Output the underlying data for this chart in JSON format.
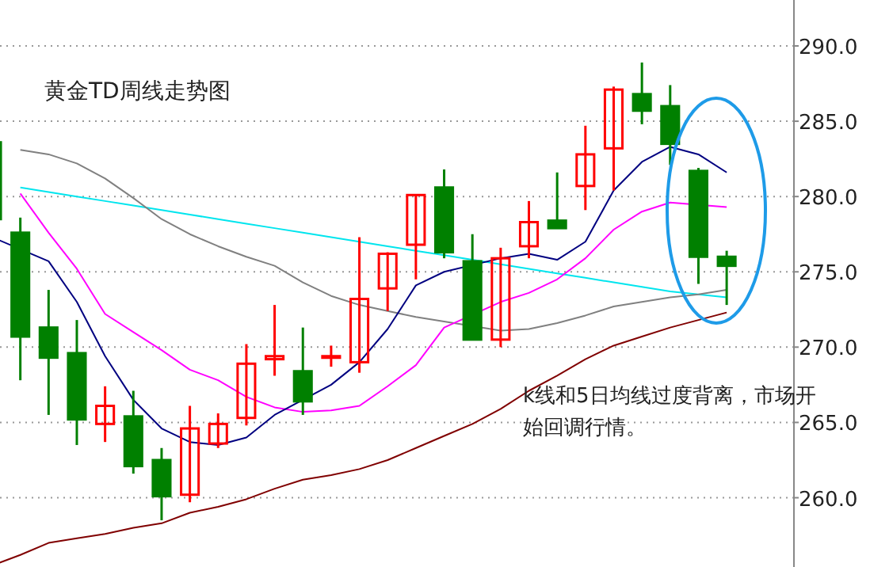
{
  "chart_data": {
    "type": "candlestick",
    "title": "黄金TD周线走势图",
    "annotations": [
      "k线和5日均线过度背离，市场开始回调行情。"
    ],
    "categories": [
      null,
      null,
      null,
      null,
      null,
      null,
      null,
      null,
      null,
      null,
      null,
      null,
      null,
      null,
      null,
      null,
      null,
      null,
      null,
      null,
      null,
      null,
      null,
      null,
      null,
      null,
      null
    ],
    "ohlc": [
      [
        283.6,
        283.6,
        278.5,
        278.5
      ],
      [
        277.6,
        278.6,
        267.8,
        270.7
      ],
      [
        271.3,
        273.8,
        265.5,
        269.3
      ],
      [
        269.6,
        271.8,
        263.5,
        265.2
      ],
      [
        264.9,
        267.4,
        263.7,
        266.1
      ],
      [
        265.4,
        267.1,
        261.6,
        262.1
      ],
      [
        262.5,
        263.3,
        258.5,
        260.1
      ],
      [
        260.2,
        266.1,
        259.7,
        264.6
      ],
      [
        263.6,
        265.6,
        263.3,
        264.9
      ],
      [
        265.3,
        270.2,
        264.8,
        268.9
      ],
      [
        269.2,
        272.8,
        268.1,
        269.4
      ],
      [
        268.4,
        271.3,
        265.5,
        266.4
      ],
      [
        269.4,
        270.1,
        268.7,
        269.4
      ],
      [
        269.0,
        277.3,
        268.3,
        273.2
      ],
      [
        273.9,
        276.3,
        272.4,
        276.2
      ],
      [
        276.8,
        280.1,
        274.5,
        280.1
      ],
      [
        280.6,
        281.8,
        275.9,
        276.3
      ],
      [
        275.7,
        277.5,
        270.5,
        270.5
      ],
      [
        270.5,
        276.6,
        270.0,
        275.9
      ],
      [
        276.7,
        279.7,
        275.9,
        278.3
      ],
      [
        278.4,
        281.6,
        277.9,
        277.9
      ],
      [
        280.7,
        284.7,
        279.1,
        282.8
      ],
      [
        283.2,
        287.3,
        280.4,
        287.1
      ],
      [
        286.8,
        288.9,
        284.8,
        285.7
      ],
      [
        286.0,
        287.4,
        282.1,
        283.5
      ],
      [
        281.7,
        281.9,
        274.2,
        276.0
      ],
      [
        276.0,
        276.4,
        272.8,
        275.4
      ]
    ],
    "colors": [
      "#008000",
      "#008000",
      "#008000",
      "#008000",
      "#ff0000",
      "#008000",
      "#008000",
      "#ff0000",
      "#ff0000",
      "#ff0000",
      "#ff0000",
      "#008000",
      "#ff0000",
      "#ff0000",
      "#ff0000",
      "#ff0000",
      "#008000",
      "#008000",
      "#ff0000",
      "#ff0000",
      "#008000",
      "#ff0000",
      "#ff0000",
      "#008000",
      "#008000",
      "#008000",
      "#008000"
    ],
    "series": [
      {
        "type": "line",
        "color": "#800000",
        "values": [
          255.5,
          256.2,
          257.0,
          257.3,
          257.6,
          258.0,
          258.3,
          259.0,
          259.4,
          259.9,
          260.6,
          261.2,
          261.5,
          261.9,
          262.5,
          263.3,
          264.1,
          264.9,
          265.9,
          267.1,
          268.1,
          269.2,
          270.1,
          270.7,
          271.3,
          271.8,
          272.3
        ]
      },
      {
        "type": "line",
        "color": "#00e5ee",
        "values": [
          null,
          280.6,
          280.3,
          280.0,
          279.7,
          279.4,
          279.1,
          278.8,
          278.5,
          278.2,
          277.9,
          277.6,
          277.3,
          277.0,
          276.7,
          276.4,
          276.1,
          275.8,
          275.5,
          275.2,
          274.9,
          274.6,
          274.3,
          274.0,
          273.7,
          273.5,
          273.3
        ]
      },
      {
        "type": "line",
        "color": "#808080",
        "values": [
          null,
          283.1,
          282.8,
          282.2,
          281.2,
          279.9,
          278.5,
          277.5,
          276.7,
          276.0,
          275.4,
          274.3,
          273.4,
          272.8,
          272.4,
          272.0,
          271.7,
          null,
          271.1,
          271.2,
          271.6,
          272.1,
          272.7,
          273.0,
          273.3,
          273.5,
          273.8
        ]
      },
      {
        "type": "line",
        "color": "#ff00ff",
        "values": [
          null,
          280.2,
          277.6,
          275.2,
          272.2,
          271.0,
          269.8,
          268.5,
          267.8,
          266.7,
          266.0,
          265.7,
          265.8,
          266.1,
          267.4,
          268.8,
          271.3,
          null,
          273.0,
          273.6,
          274.5,
          275.9,
          277.8,
          279.0,
          279.6,
          null,
          279.3
        ]
      },
      {
        "type": "line",
        "color": "#000080",
        "values": [
          277.3,
          null,
          275.7,
          273.0,
          269.4,
          266.5,
          264.6,
          263.7,
          263.5,
          264.0,
          265.5,
          null,
          267.5,
          269.0,
          271.2,
          274.1,
          275.0,
          null,
          275.9,
          276.2,
          275.8,
          277.0,
          280.4,
          282.3,
          283.3,
          282.8,
          281.6
        ]
      }
    ],
    "ylim": [
      255.4,
      293.05
    ],
    "yticks": [
      {
        "value": 260,
        "label": "260.0"
      },
      {
        "value": 265,
        "label": "265.0"
      },
      {
        "value": 270,
        "label": "270.0"
      },
      {
        "value": 275,
        "label": "275.0"
      },
      {
        "value": 280,
        "label": "280.0"
      },
      {
        "value": 285,
        "label": "285.0"
      },
      {
        "value": 290,
        "label": "290.0"
      }
    ],
    "grid": "y"
  }
}
